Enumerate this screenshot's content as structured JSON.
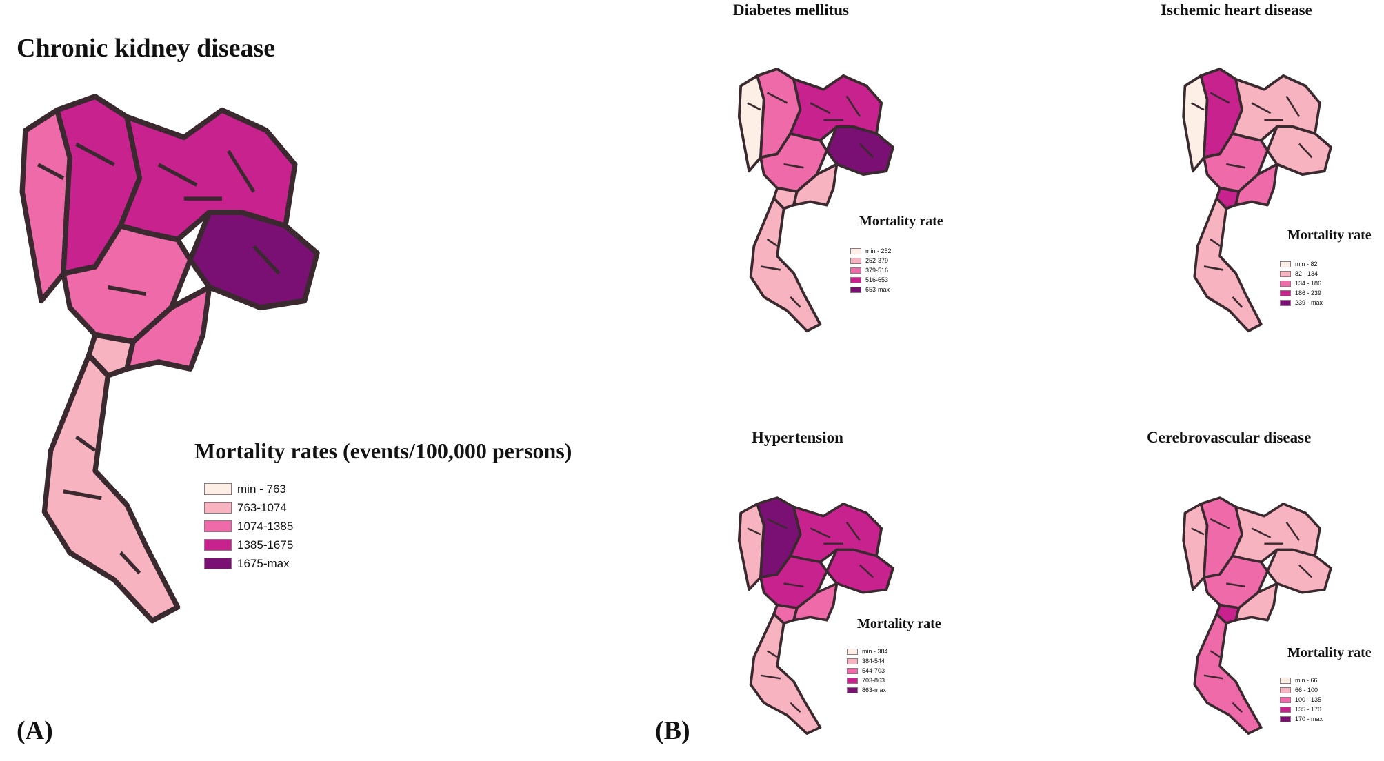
{
  "main": {
    "title": "Chronic kidney disease",
    "panel_label": "(A)",
    "legend_title": "Mortality rates (events/100,000 persons)",
    "legend": [
      {
        "label": "min - 763",
        "color": "#fdeee6"
      },
      {
        "label": "763-1074",
        "color": "#f8b3c0"
      },
      {
        "label": "1074-1385",
        "color": "#ef6aa8"
      },
      {
        "label": "1385-1675",
        "color": "#c8228e"
      },
      {
        "label": "1675-max",
        "color": "#7a0f74"
      }
    ],
    "region_levels": {
      "northwest": 2,
      "north": 3,
      "northeast": 3,
      "east": 4,
      "central": 2,
      "bangkok": 1,
      "southeast": 2,
      "south": 1
    }
  },
  "panel_b_label": "(B)",
  "subpanels": [
    {
      "title": "Diabetes mellitus",
      "legend_title": "Mortality rate",
      "legend": [
        {
          "label": "min - 252",
          "color": "#fdeee6"
        },
        {
          "label": "252-379",
          "color": "#f8b3c0"
        },
        {
          "label": "379-516",
          "color": "#ef6aa8"
        },
        {
          "label": "516-653",
          "color": "#c8228e"
        },
        {
          "label": "653-max",
          "color": "#7a0f74"
        }
      ],
      "region_levels": {
        "northwest": 0,
        "north": 2,
        "northeast": 3,
        "east": 4,
        "central": 2,
        "bangkok": 1,
        "southeast": 1,
        "south": 1
      }
    },
    {
      "title": "Ischemic heart disease",
      "legend_title": "Mortality rate",
      "legend": [
        {
          "label": "min - 82",
          "color": "#fdeee6"
        },
        {
          "label": "82 - 134",
          "color": "#f8b3c0"
        },
        {
          "label": "134 - 186",
          "color": "#ef6aa8"
        },
        {
          "label": "186 - 239",
          "color": "#c8228e"
        },
        {
          "label": "239 - max",
          "color": "#7a0f74"
        }
      ],
      "region_levels": {
        "northwest": 0,
        "north": 3,
        "northeast": 1,
        "east": 1,
        "central": 2,
        "bangkok": 3,
        "southeast": 2,
        "south": 1
      }
    },
    {
      "title": "Hypertension",
      "legend_title": "Mortality rate",
      "legend": [
        {
          "label": "min - 384",
          "color": "#fdeee6"
        },
        {
          "label": "384-544",
          "color": "#f8b3c0"
        },
        {
          "label": "544-703",
          "color": "#ef6aa8"
        },
        {
          "label": "703-863",
          "color": "#c8228e"
        },
        {
          "label": "863-max",
          "color": "#7a0f74"
        }
      ],
      "region_levels": {
        "northwest": 1,
        "north": 4,
        "northeast": 3,
        "east": 3,
        "central": 3,
        "bangkok": 2,
        "southeast": 2,
        "south": 1
      }
    },
    {
      "title": "Cerebrovascular disease",
      "legend_title": "Mortality rate",
      "legend": [
        {
          "label": "min - 66",
          "color": "#fdeee6"
        },
        {
          "label": "66 - 100",
          "color": "#f8b3c0"
        },
        {
          "label": "100 - 135",
          "color": "#ef6aa8"
        },
        {
          "label": "135 - 170",
          "color": "#c8228e"
        },
        {
          "label": "170 - max",
          "color": "#7a0f74"
        }
      ],
      "region_levels": {
        "northwest": 1,
        "north": 2,
        "northeast": 1,
        "east": 1,
        "central": 2,
        "bangkok": 3,
        "southeast": 1,
        "south": 2
      }
    }
  ]
}
